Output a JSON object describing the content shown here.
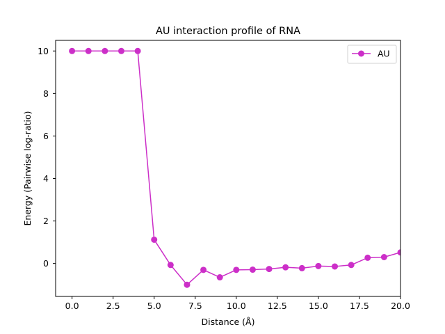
{
  "colors": {
    "series": "#cc2fc8",
    "axis": "#000000",
    "background": "#ffffff"
  },
  "chart_data": {
    "type": "line",
    "title": "AU interaction profile of  RNA",
    "xlabel": "Distance (Å)",
    "ylabel": "Energy (Pairwise log-ratio)",
    "xlim": [
      -1,
      20
    ],
    "ylim": [
      -1.55,
      10.5
    ],
    "xticks": [
      0,
      2.5,
      5,
      7.5,
      10,
      12.5,
      15,
      17.5,
      20
    ],
    "xtick_labels": [
      "0.0",
      "2.5",
      "5.0",
      "7.5",
      "10.0",
      "12.5",
      "15.0",
      "17.5",
      "20.0"
    ],
    "yticks": [
      0,
      2,
      4,
      6,
      8,
      10
    ],
    "ytick_labels": [
      "0",
      "2",
      "4",
      "6",
      "8",
      "10"
    ],
    "grid": false,
    "legend_position": "top-right",
    "series": [
      {
        "name": "AU",
        "marker": "circle",
        "x": [
          0,
          1,
          2,
          3,
          4,
          5,
          6,
          7,
          8,
          9,
          10,
          11,
          12,
          13,
          14,
          15,
          16,
          17,
          18,
          19,
          20
        ],
        "y": [
          10,
          10,
          10,
          10,
          10,
          1.12,
          -0.07,
          -1.0,
          -0.3,
          -0.65,
          -0.3,
          -0.29,
          -0.26,
          -0.18,
          -0.22,
          -0.12,
          -0.14,
          -0.07,
          0.27,
          0.3,
          0.52
        ]
      }
    ]
  }
}
